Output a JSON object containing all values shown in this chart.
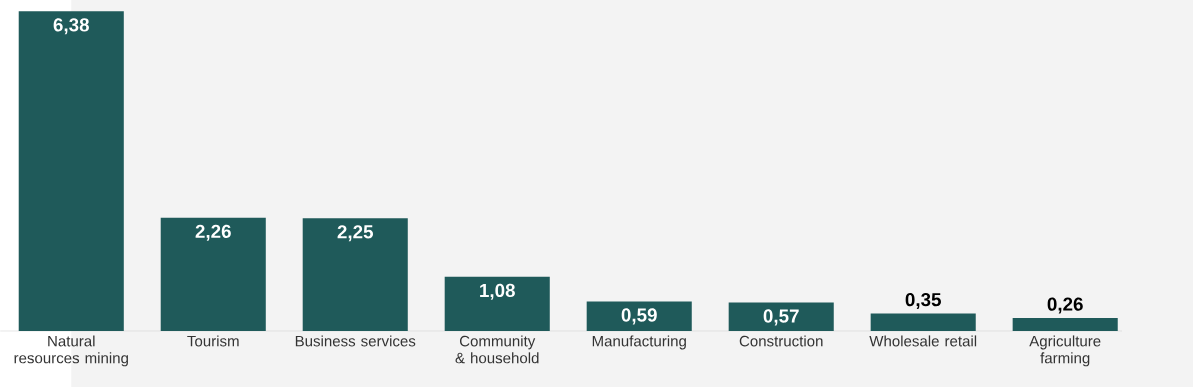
{
  "chart_data": {
    "type": "bar",
    "categories": [
      "Natural resources mining",
      "Tourism",
      "Business services",
      "Community & household",
      "Manufacturing",
      "Construction",
      "Wholesale retail",
      "Agriculture farming"
    ],
    "values": [
      6.38,
      2.26,
      2.25,
      1.08,
      0.59,
      0.57,
      0.35,
      0.26
    ],
    "value_labels": [
      "6,38",
      "2,26",
      "2,25",
      "1,08",
      "0,59",
      "0,57",
      "0,35",
      "0,26"
    ],
    "color": "#1f5a5a"
  }
}
